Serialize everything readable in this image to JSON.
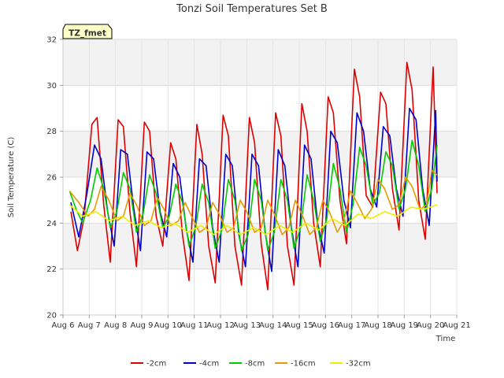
{
  "chart_data": {
    "type": "line",
    "title": "Tonzi Soil Temperatures Set B",
    "xlabel": "Time",
    "ylabel": "Soil Temperature (C)",
    "site_label": "TZ_fmet",
    "xlim": [
      6,
      21
    ],
    "ylim": [
      20,
      32
    ],
    "x_ticks": [
      6,
      7,
      8,
      9,
      10,
      11,
      12,
      13,
      14,
      15,
      16,
      17,
      18,
      19,
      20,
      21
    ],
    "x_tick_labels": [
      "Aug 6",
      "Aug 7",
      "Aug 8",
      "Aug 9",
      "Aug 10",
      "Aug 11",
      "Aug 12",
      "Aug 13",
      "Aug 14",
      "Aug 15",
      "Aug 16",
      "Aug 17",
      "Aug 18",
      "Aug 19",
      "Aug 20",
      "Aug 21"
    ],
    "y_ticks": [
      20,
      22,
      24,
      26,
      28,
      30,
      32
    ],
    "y_tick_labels": [
      "20",
      "22",
      "24",
      "26",
      "28",
      "30",
      "32"
    ],
    "grid": true,
    "legend_position": "bottom",
    "series": [
      {
        "name": "-2cm",
        "color": "#dd0000",
        "x": [
          6.3,
          6.55,
          6.8,
          7.1,
          7.3,
          7.55,
          7.8,
          8.1,
          8.3,
          8.55,
          8.8,
          9.1,
          9.3,
          9.55,
          9.8,
          10.1,
          10.3,
          10.55,
          10.8,
          11.1,
          11.3,
          11.55,
          11.8,
          12.1,
          12.3,
          12.55,
          12.8,
          13.1,
          13.3,
          13.55,
          13.8,
          14.1,
          14.3,
          14.55,
          14.8,
          15.1,
          15.3,
          15.55,
          15.8,
          16.1,
          16.3,
          16.55,
          16.8,
          17.1,
          17.3,
          17.55,
          17.8,
          18.1,
          18.3,
          18.55,
          18.8,
          19.1,
          19.3,
          19.55,
          19.8,
          20.1,
          20.25
        ],
        "y": [
          24.5,
          22.8,
          24.2,
          28.3,
          28.6,
          24.8,
          22.3,
          28.5,
          28.2,
          24.5,
          22.1,
          28.4,
          28.0,
          24.3,
          23.0,
          27.5,
          26.8,
          23.5,
          21.5,
          28.3,
          27.0,
          23.0,
          21.4,
          28.7,
          27.8,
          23.0,
          21.3,
          28.6,
          27.5,
          23.1,
          21.1,
          28.8,
          27.8,
          23.0,
          21.3,
          29.2,
          28.0,
          24.0,
          22.1,
          29.5,
          28.8,
          25.0,
          23.1,
          30.7,
          29.5,
          25.2,
          24.7,
          29.7,
          29.2,
          25.5,
          23.7,
          31.0,
          29.8,
          25.0,
          23.3,
          30.8,
          25.3
        ]
      },
      {
        "name": "-4cm",
        "color": "#0000cc",
        "x": [
          6.3,
          6.6,
          6.9,
          7.2,
          7.45,
          7.7,
          7.95,
          8.2,
          8.45,
          8.7,
          8.95,
          9.2,
          9.45,
          9.7,
          9.95,
          10.2,
          10.45,
          10.7,
          10.95,
          11.2,
          11.45,
          11.7,
          11.95,
          12.2,
          12.45,
          12.7,
          12.95,
          13.2,
          13.45,
          13.7,
          13.95,
          14.2,
          14.45,
          14.7,
          14.95,
          15.2,
          15.45,
          15.7,
          15.95,
          16.2,
          16.45,
          16.7,
          16.95,
          17.2,
          17.45,
          17.7,
          17.95,
          18.2,
          18.45,
          18.7,
          18.95,
          19.2,
          19.45,
          19.7,
          19.95,
          20.2,
          20.25
        ],
        "y": [
          24.9,
          23.4,
          25.2,
          27.4,
          26.8,
          24.5,
          23.0,
          27.2,
          27.0,
          24.6,
          22.8,
          27.1,
          26.8,
          24.5,
          23.4,
          26.6,
          26.0,
          23.7,
          22.3,
          26.8,
          26.5,
          23.8,
          22.3,
          27.0,
          26.5,
          23.5,
          22.1,
          27.0,
          26.5,
          23.6,
          21.9,
          27.2,
          26.5,
          23.8,
          22.1,
          27.4,
          26.8,
          24.0,
          22.7,
          28.0,
          27.5,
          25.0,
          23.8,
          28.8,
          28.0,
          25.5,
          24.7,
          28.2,
          27.8,
          25.5,
          24.3,
          29.0,
          28.5,
          25.5,
          23.9,
          28.9,
          25.8
        ]
      },
      {
        "name": "-8cm",
        "color": "#00cc00",
        "x": [
          6.25,
          6.5,
          6.75,
          7.05,
          7.3,
          7.55,
          7.8,
          8.05,
          8.3,
          8.55,
          8.8,
          9.05,
          9.3,
          9.55,
          9.8,
          10.05,
          10.3,
          10.55,
          10.8,
          11.05,
          11.3,
          11.55,
          11.8,
          12.05,
          12.3,
          12.55,
          12.8,
          13.05,
          13.3,
          13.55,
          13.8,
          14.05,
          14.3,
          14.55,
          14.8,
          15.05,
          15.3,
          15.55,
          15.8,
          16.05,
          16.3,
          16.55,
          16.8,
          17.05,
          17.3,
          17.55,
          17.8,
          18.05,
          18.3,
          18.55,
          18.8,
          19.05,
          19.3,
          19.55,
          19.8,
          20.05,
          20.25
        ],
        "y": [
          25.4,
          24.6,
          24.0,
          25.0,
          26.4,
          25.5,
          23.8,
          24.5,
          26.2,
          25.5,
          23.6,
          24.4,
          26.1,
          25.3,
          23.8,
          24.3,
          25.7,
          24.9,
          23.0,
          23.8,
          25.7,
          24.9,
          22.9,
          23.7,
          25.9,
          25.0,
          22.8,
          23.5,
          25.9,
          25.0,
          22.8,
          23.6,
          25.9,
          25.0,
          22.9,
          23.8,
          26.1,
          25.0,
          23.2,
          24.2,
          26.6,
          25.5,
          23.6,
          24.8,
          27.3,
          26.5,
          24.8,
          25.3,
          27.1,
          26.5,
          24.6,
          25.5,
          27.6,
          26.5,
          24.5,
          25.5,
          27.4
        ]
      },
      {
        "name": "-16cm",
        "color": "#e89a00",
        "x": [
          6.25,
          6.6,
          6.95,
          7.2,
          7.45,
          7.75,
          8.05,
          8.3,
          8.55,
          8.8,
          9.1,
          9.35,
          9.6,
          9.85,
          10.1,
          10.4,
          10.65,
          10.9,
          11.2,
          11.45,
          11.7,
          11.95,
          12.25,
          12.5,
          12.75,
          13.0,
          13.3,
          13.55,
          13.8,
          14.05,
          14.35,
          14.6,
          14.85,
          15.1,
          15.4,
          15.65,
          15.9,
          16.15,
          16.45,
          16.7,
          16.95,
          17.2,
          17.5,
          17.75,
          18.0,
          18.25,
          18.55,
          18.8,
          19.05,
          19.3,
          19.6,
          19.85,
          20.05,
          20.25
        ],
        "y": [
          25.4,
          24.9,
          24.3,
          24.6,
          25.6,
          25.0,
          24.1,
          24.3,
          25.3,
          24.8,
          23.9,
          24.1,
          25.1,
          24.6,
          23.9,
          24.1,
          24.9,
          24.3,
          23.6,
          23.8,
          24.9,
          24.4,
          23.6,
          23.8,
          25.0,
          24.5,
          23.6,
          23.8,
          25.0,
          24.4,
          23.5,
          23.8,
          25.0,
          24.4,
          23.5,
          23.8,
          25.0,
          24.5,
          23.6,
          24.1,
          25.4,
          24.9,
          24.2,
          24.6,
          25.9,
          25.5,
          24.6,
          24.8,
          26.0,
          25.6,
          24.6,
          24.8,
          26.3,
          26.1
        ]
      },
      {
        "name": "-32cm",
        "color": "#eeee00",
        "x": [
          6.25,
          6.75,
          7.25,
          7.75,
          8.25,
          8.75,
          9.25,
          9.75,
          10.25,
          10.75,
          11.25,
          11.75,
          12.25,
          12.75,
          13.25,
          13.75,
          14.25,
          14.75,
          15.25,
          15.75,
          16.25,
          16.75,
          17.25,
          17.75,
          18.25,
          18.75,
          19.25,
          19.75,
          20.25
        ],
        "y": [
          24.8,
          24.3,
          24.5,
          24.1,
          24.3,
          23.9,
          24.1,
          23.8,
          24.0,
          23.6,
          23.9,
          23.5,
          23.9,
          23.5,
          23.8,
          23.5,
          23.9,
          23.6,
          24.0,
          23.7,
          24.2,
          23.9,
          24.4,
          24.2,
          24.5,
          24.3,
          24.7,
          24.6,
          24.8
        ]
      }
    ]
  }
}
